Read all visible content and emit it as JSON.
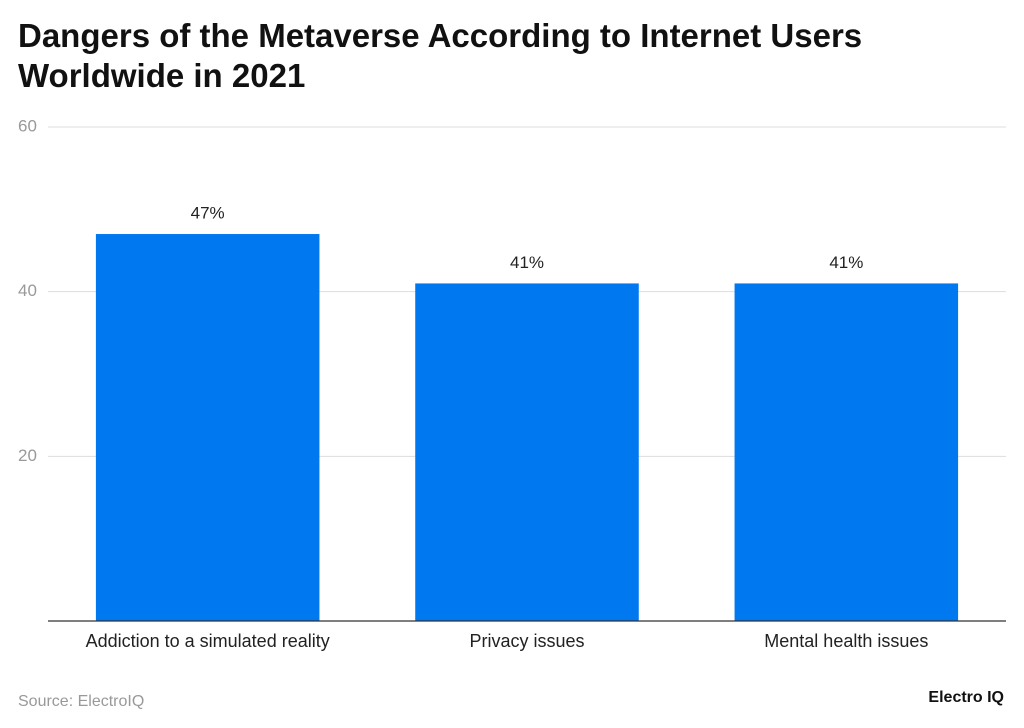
{
  "chart_data": {
    "type": "bar",
    "title": "Dangers of the Metaverse According to Internet Users Worldwide in 2021",
    "categories": [
      "Addiction to a simulated reality",
      "Privacy issues",
      "Mental health issues"
    ],
    "values": [
      47,
      41,
      41
    ],
    "value_labels": [
      "47%",
      "41%",
      "41%"
    ],
    "color": "#0078f0",
    "ylim": [
      0,
      60
    ],
    "yticks": [
      20,
      40,
      60
    ],
    "grid": true,
    "source": "Source: ElectroIQ",
    "logo": "Electro IQ"
  }
}
